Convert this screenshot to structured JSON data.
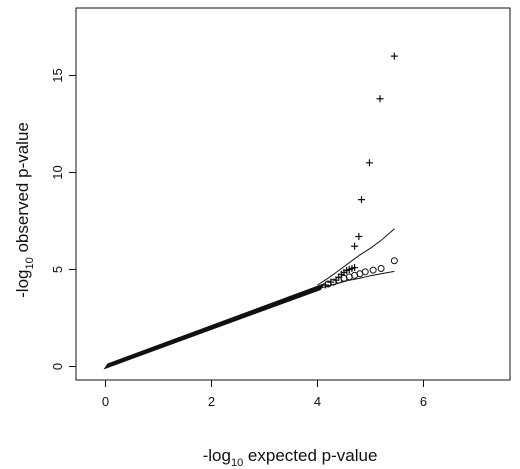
{
  "chart_data": {
    "type": "scatter",
    "title": "",
    "xlabel": {
      "prefix": "-log",
      "subscript": "10",
      "suffix": " expected p-value"
    },
    "ylabel": {
      "prefix": "-log",
      "subscript": "10",
      "suffix": " observed p-value"
    },
    "xlim": [
      0,
      7.5
    ],
    "ylim": [
      0,
      18
    ],
    "x_ticks": [
      0,
      2,
      4,
      6
    ],
    "y_ticks": [
      0,
      5,
      10,
      15
    ],
    "x_tick_labels": [
      "0",
      "2",
      "4",
      "6"
    ],
    "y_tick_labels": [
      "0",
      "5",
      "10",
      "15"
    ],
    "grid": false,
    "legend": "none",
    "series": [
      {
        "marker": "circle",
        "dense_segment": {
          "x_start": 0.0,
          "x_end": 4.1,
          "slope": 1.0
        },
        "points": [
          [
            4.2,
            4.25
          ],
          [
            4.3,
            4.35
          ],
          [
            4.4,
            4.45
          ],
          [
            4.5,
            4.55
          ],
          [
            4.6,
            4.62
          ],
          [
            4.7,
            4.7
          ],
          [
            4.8,
            4.78
          ],
          [
            4.9,
            4.88
          ],
          [
            5.05,
            4.97
          ],
          [
            5.2,
            5.05
          ],
          [
            5.45,
            5.45
          ]
        ]
      },
      {
        "marker": "plus",
        "dense_segment": {
          "x_start": 0.0,
          "x_end": 4.1,
          "slope": 1.0
        },
        "points": [
          [
            4.15,
            4.2
          ],
          [
            4.25,
            4.35
          ],
          [
            4.35,
            4.45
          ],
          [
            4.4,
            4.6
          ],
          [
            4.45,
            4.75
          ],
          [
            4.5,
            4.85
          ],
          [
            4.55,
            4.95
          ],
          [
            4.6,
            5.0
          ],
          [
            4.65,
            5.05
          ],
          [
            4.7,
            5.1
          ],
          [
            4.7,
            6.2
          ],
          [
            4.78,
            6.7
          ],
          [
            4.83,
            8.6
          ],
          [
            4.98,
            10.5
          ],
          [
            5.18,
            13.8
          ],
          [
            5.45,
            16.0
          ]
        ]
      }
    ],
    "confidence_band": {
      "upper": [
        [
          4.0,
          4.2
        ],
        [
          4.2,
          4.55
        ],
        [
          4.4,
          4.95
        ],
        [
          4.6,
          5.35
        ],
        [
          4.8,
          5.75
        ],
        [
          5.0,
          6.1
        ],
        [
          5.2,
          6.5
        ],
        [
          5.45,
          7.1
        ]
      ],
      "lower": [
        [
          4.0,
          4.0
        ],
        [
          4.2,
          4.15
        ],
        [
          4.4,
          4.3
        ],
        [
          4.6,
          4.45
        ],
        [
          4.8,
          4.55
        ],
        [
          5.0,
          4.68
        ],
        [
          5.2,
          4.78
        ],
        [
          5.45,
          4.9
        ]
      ]
    },
    "colors": {
      "ink": "#111111",
      "background": "#ffffff"
    }
  }
}
